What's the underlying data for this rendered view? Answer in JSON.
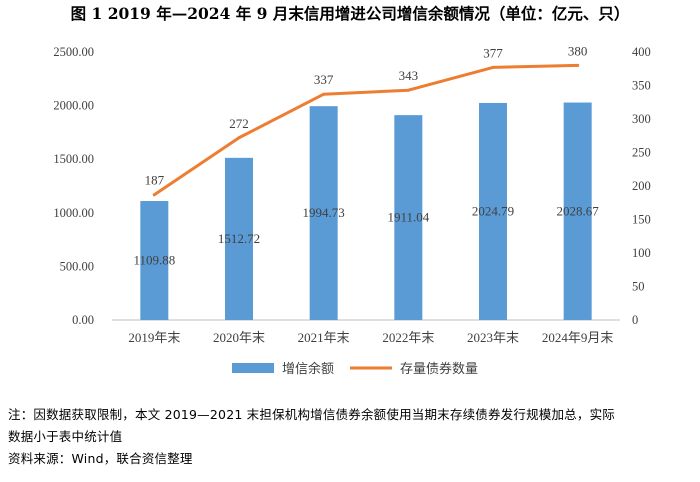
{
  "chart_data": {
    "type": "bar+line",
    "title": "图 1 2019 年—2024 年 9 月末信用增进公司增信余额情况（单位：亿元、只）",
    "categories": [
      "2019年末",
      "2020年末",
      "2021年末",
      "2022年末",
      "2023年末",
      "2024年9月末"
    ],
    "series": [
      {
        "name": "增信余额",
        "type": "bar",
        "axis": "left",
        "color": "#5B9BD5",
        "values": [
          1109.88,
          1512.72,
          1994.73,
          1911.04,
          2024.79,
          2028.67
        ],
        "labels": [
          "1109.88",
          "1512.72",
          "1994.73",
          "1911.04",
          "2024.79",
          "2028.67"
        ]
      },
      {
        "name": "存量债券数量",
        "type": "line",
        "axis": "right",
        "color": "#ED7D31",
        "values": [
          187,
          272,
          337,
          343,
          377,
          380
        ],
        "labels": [
          "187",
          "272",
          "337",
          "343",
          "377",
          "380"
        ]
      }
    ],
    "left_axis": {
      "min": 0,
      "max": 2500,
      "ticks": [
        "0.00",
        "500.00",
        "1000.00",
        "1500.00",
        "2000.00",
        "2500.00"
      ]
    },
    "right_axis": {
      "min": 0,
      "max": 400,
      "ticks": [
        "0",
        "50",
        "100",
        "150",
        "200",
        "250",
        "300",
        "350",
        "400"
      ]
    },
    "grid": false,
    "legend": "bottom"
  },
  "notes": {
    "line1": "注：因数据获取限制，本文 2019—2021 末担保机构增信债券余额使用当期末存续债券发行规模加总，实际",
    "line2": "数据小于表中统计值",
    "source": "资料来源：Wind，联合资信整理"
  }
}
